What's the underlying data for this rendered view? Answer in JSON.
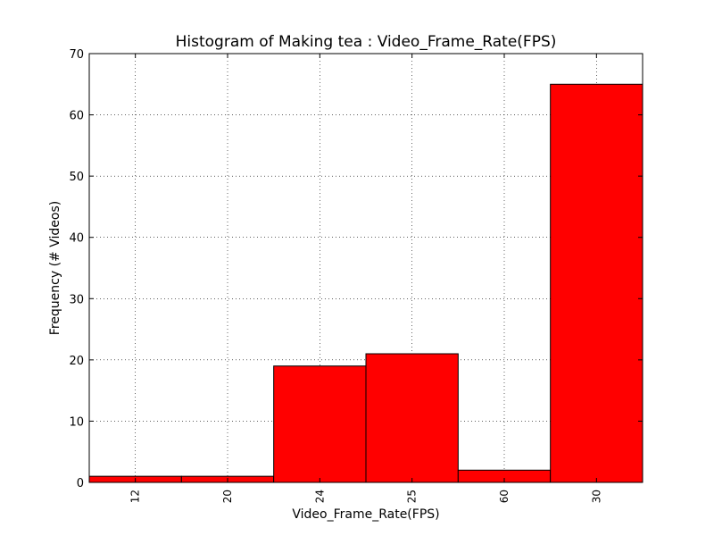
{
  "chart_data": {
    "type": "bar",
    "title": "Histogram of Making tea : Video_Frame_Rate(FPS)",
    "xlabel": "Video_Frame_Rate(FPS)",
    "ylabel": "Frequency (# Videos)",
    "categories": [
      "12",
      "20",
      "24",
      "25",
      "60",
      "30"
    ],
    "values": [
      1,
      1,
      19,
      21,
      2,
      65
    ],
    "ylim": [
      0,
      70
    ],
    "yticks": [
      0,
      10,
      20,
      30,
      40,
      50,
      60,
      70
    ],
    "bar_color": "#ff0000",
    "grid": true,
    "legend": "none"
  }
}
